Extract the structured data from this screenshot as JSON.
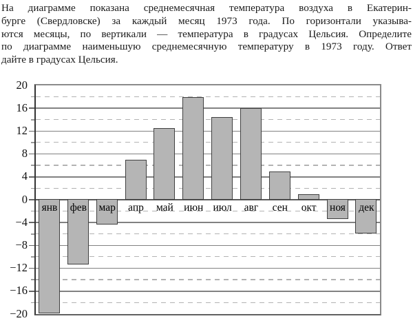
{
  "problem": {
    "lines": [
      "На диаграмме показана среднемесячная температура воздуха в Екатерин-",
      "бурге (Свердловске) за каждый месяц 1973 года. По горизонтали указыва-",
      "ются месяцы, по вертикали — температура в градусах Цельсия. Определите",
      "по диаграмме наименьшую среднемесячную температуру в 1973 году. Ответ",
      "дайте в градусах Цельсия."
    ]
  },
  "chart_data": {
    "type": "bar",
    "title": "",
    "xlabel": "",
    "ylabel": "",
    "categories": [
      "янв",
      "фев",
      "мар",
      "апр",
      "май",
      "июн",
      "июл",
      "авг",
      "сен",
      "окт",
      "ноя",
      "дек"
    ],
    "values": [
      -20,
      -11.5,
      -4.5,
      7,
      12.5,
      18,
      14.5,
      16,
      5,
      1,
      -3.5,
      -6
    ],
    "ylim": [
      -20,
      20
    ],
    "ytick_values": [
      20,
      16,
      12,
      8,
      4,
      0,
      -4,
      -8,
      -12,
      -16,
      -20
    ],
    "ytick_labels": [
      "20",
      "16",
      "12",
      "8",
      "4",
      "0",
      "−4",
      "−8",
      "−12",
      "−16",
      "−20"
    ],
    "grid": {
      "solid_every": 4,
      "dashed_every": 2
    },
    "legend": "none",
    "bar_orientation": "vertical"
  },
  "colors": {
    "bar_fill": "#b5b5b5",
    "bar_border": "#404040",
    "grid_solid": "#818181",
    "grid_dashed": "#b2b2b2",
    "text": "#1a1a1a"
  }
}
